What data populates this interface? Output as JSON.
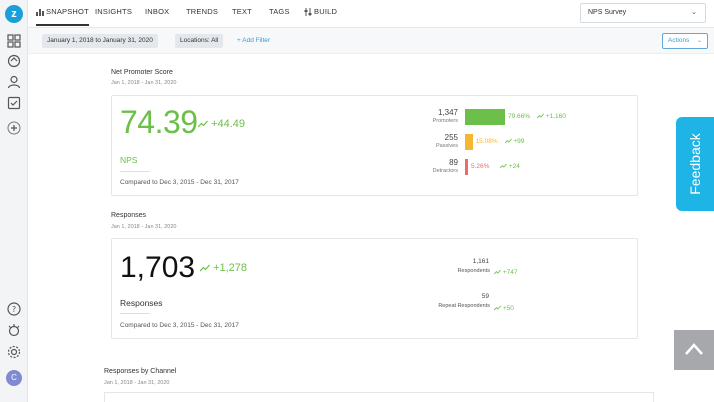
{
  "nav": {
    "tabs": [
      "SNAPSHOT",
      "INSIGHTS",
      "INBOX",
      "TRENDS",
      "TEXT",
      "TAGS",
      "BUILD"
    ],
    "survey_select": "NPS Survey"
  },
  "filters": {
    "date_range": "January 1, 2018 to January 31, 2020",
    "locations": "Locations: All",
    "add_filter": "+ Add Filter",
    "actions": "Actions"
  },
  "nps_section": {
    "title": "Net Promoter Score",
    "date": "Jan 1, 2018 - Jan 31, 2020",
    "score": "74.39",
    "score_delta": "+44.49",
    "label": "NPS",
    "compare": "Compared to Dec 3, 2015 - Dec 31, 2017",
    "breakdown": [
      {
        "count": "1,347",
        "label": "Promoters",
        "percent": "79.66%",
        "delta": "+1,160",
        "fraction": 0.7966,
        "color": "#6cc04a"
      },
      {
        "count": "255",
        "label": "Passives",
        "percent": "15.08%",
        "delta": "+99",
        "fraction": 0.1508,
        "color": "#f5b731"
      },
      {
        "count": "89",
        "label": "Detractors",
        "percent": "5.26%",
        "delta": "+24",
        "fraction": 0.0526,
        "color": "#ee6a6a"
      }
    ]
  },
  "responses_section": {
    "title": "Responses",
    "date": "Jan 1, 2018 - Jan 31, 2020",
    "total": "1,703",
    "total_delta": "+1,278",
    "label": "Responses",
    "compare": "Compared to Dec 3, 2015 - Dec 31, 2017",
    "respondents_count": "1,161",
    "respondents_label": "Respondents",
    "respondents_delta": "+747",
    "repeat_count": "59",
    "repeat_label": "Repeat Respondents",
    "repeat_delta": "+50"
  },
  "channel_section": {
    "title": "Responses by Channel",
    "date": "Jan 1, 2018 - Jan 31, 2020"
  },
  "feedback_tab": "Feedback",
  "colors": {
    "accent": "#6cc04a",
    "brand": "#1b9fd8",
    "feedback": "#1eb4e6"
  }
}
